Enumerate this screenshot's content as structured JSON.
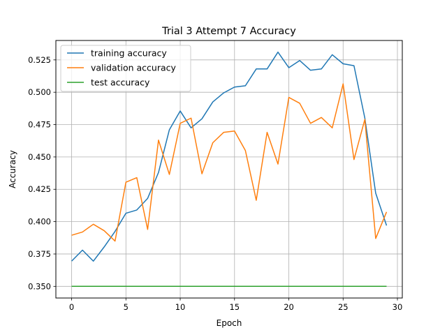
{
  "chart_data": {
    "type": "line",
    "title": "Trial 3 Attempt 7 Accuracy",
    "xlabel": "Epoch",
    "ylabel": "Accuracy",
    "xlim": [
      -1.45,
      30.45
    ],
    "ylim": [
      0.341,
      0.54
    ],
    "xticks": [
      0,
      5,
      10,
      15,
      20,
      25,
      30
    ],
    "yticks": [
      0.35,
      0.375,
      0.4,
      0.425,
      0.45,
      0.475,
      0.5,
      0.525
    ],
    "grid": true,
    "legend_position": "top-left",
    "x": [
      0,
      1,
      2,
      3,
      4,
      5,
      6,
      7,
      8,
      9,
      10,
      11,
      12,
      13,
      14,
      15,
      16,
      17,
      18,
      19,
      20,
      21,
      22,
      23,
      24,
      25,
      26,
      27,
      28,
      29
    ],
    "series": [
      {
        "name": "training accuracy",
        "color": "#1f77b4",
        "values": [
          0.3695,
          0.378,
          0.3695,
          0.3805,
          0.3925,
          0.4065,
          0.409,
          0.418,
          0.438,
          0.471,
          0.4855,
          0.4725,
          0.4795,
          0.4925,
          0.4995,
          0.504,
          0.505,
          0.518,
          0.518,
          0.531,
          0.519,
          0.5245,
          0.517,
          0.518,
          0.529,
          0.522,
          0.5205,
          0.48,
          0.422,
          0.397
        ]
      },
      {
        "name": "validation accuracy",
        "color": "#ff7f0e",
        "values": [
          0.3895,
          0.392,
          0.398,
          0.393,
          0.385,
          0.4305,
          0.434,
          0.394,
          0.463,
          0.4365,
          0.476,
          0.48,
          0.437,
          0.461,
          0.469,
          0.47,
          0.455,
          0.4165,
          0.469,
          0.4445,
          0.496,
          0.4915,
          0.476,
          0.4805,
          0.4725,
          0.5065,
          0.448,
          0.479,
          0.387,
          0.4075
        ]
      },
      {
        "name": "test accuracy",
        "color": "#2ca02c",
        "values": [
          0.35,
          0.35,
          0.35,
          0.35,
          0.35,
          0.35,
          0.35,
          0.35,
          0.35,
          0.35,
          0.35,
          0.35,
          0.35,
          0.35,
          0.35,
          0.35,
          0.35,
          0.35,
          0.35,
          0.35,
          0.35,
          0.35,
          0.35,
          0.35,
          0.35,
          0.35,
          0.35,
          0.35,
          0.35,
          0.35
        ]
      }
    ]
  }
}
